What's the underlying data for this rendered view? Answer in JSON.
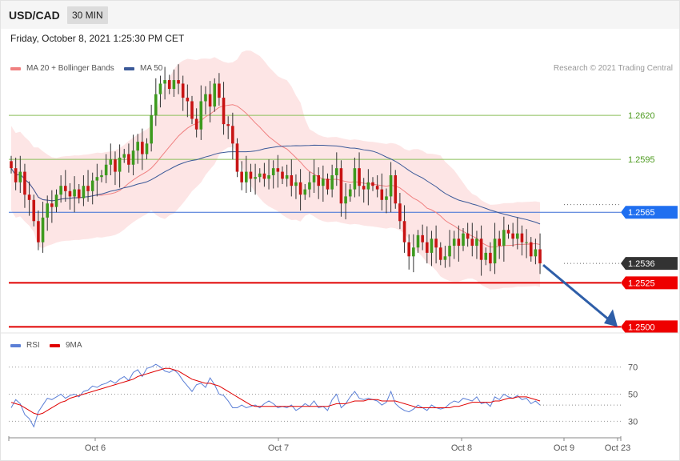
{
  "header": {
    "symbol": "USD/CAD",
    "timeframe": "30 MIN",
    "datetime": "Friday, October 8, 2021 1:25:30 PM CET"
  },
  "legend": {
    "main": [
      {
        "label": "MA 20 + Bollinger Bands",
        "color": "#f08080"
      },
      {
        "label": "MA 50",
        "color": "#3b5998"
      }
    ],
    "rsi": [
      {
        "label": "RSI",
        "color": "#5b7fd6"
      },
      {
        "label": "9MA",
        "color": "#e00000"
      }
    ],
    "credit": "Research © 2021 Trading Central"
  },
  "chart_data": [
    {
      "type": "candlestick",
      "ylim": [
        1.2497,
        1.2665
      ],
      "x_labels": [
        "Oct 6",
        "Oct 7",
        "Oct 8",
        "Oct 9",
        "Oct 23"
      ],
      "levels": [
        {
          "value": 1.262,
          "label": "1.2620",
          "kind": "resistance"
        },
        {
          "value": 1.2595,
          "label": "1.2595",
          "kind": "resistance"
        },
        {
          "value": 1.2565,
          "label": "1.2565",
          "kind": "pivot"
        },
        {
          "value": 1.2536,
          "label": "1.2536",
          "kind": "last"
        },
        {
          "value": 1.2525,
          "label": "1.2525",
          "kind": "support"
        },
        {
          "value": 1.25,
          "label": "1.2500",
          "kind": "support"
        }
      ],
      "closes": [
        1.259,
        1.2582,
        1.2588,
        1.2575,
        1.2572,
        1.256,
        1.2548,
        1.2562,
        1.257,
        1.2568,
        1.2575,
        1.258,
        1.2577,
        1.2574,
        1.2578,
        1.2573,
        1.258,
        1.2577,
        1.2583,
        1.2585,
        1.2586,
        1.2592,
        1.2595,
        1.2588,
        1.2596,
        1.2598,
        1.2592,
        1.26,
        1.2605,
        1.2598,
        1.2604,
        1.262,
        1.2632,
        1.2638,
        1.264,
        1.2635,
        1.264,
        1.2638,
        1.263,
        1.2628,
        1.2618,
        1.2612,
        1.2628,
        1.2632,
        1.2625,
        1.2638,
        1.263,
        1.2615,
        1.2614,
        1.2604,
        1.2588,
        1.2582,
        1.2588,
        1.2584,
        1.2585,
        1.2587,
        1.2584,
        1.2586,
        1.259,
        1.2588,
        1.2584,
        1.2586,
        1.258,
        1.2582,
        1.2575,
        1.2578,
        1.2582,
        1.2586,
        1.258,
        1.2584,
        1.2578,
        1.2586,
        1.259,
        1.257,
        1.2574,
        1.2578,
        1.259,
        1.258,
        1.2578,
        1.2582,
        1.258,
        1.2578,
        1.2572,
        1.2574,
        1.2586,
        1.257,
        1.256,
        1.2548,
        1.254,
        1.2545,
        1.2552,
        1.2548,
        1.2542,
        1.255,
        1.2545,
        1.2538,
        1.254,
        1.2546,
        1.255,
        1.2546,
        1.2553,
        1.255,
        1.2546,
        1.255,
        1.2538,
        1.2542,
        1.2536,
        1.255,
        1.2546,
        1.2555,
        1.2553,
        1.255,
        1.2553,
        1.2548,
        1.2548,
        1.254,
        1.2544,
        1.2536
      ],
      "series": [
        {
          "name": "MA 20 + Bollinger Bands"
        },
        {
          "name": "MA 50"
        }
      ]
    },
    {
      "type": "line",
      "ylim": [
        22,
        78
      ],
      "y_ticks": [
        30,
        50,
        70
      ],
      "y_tick_labels": [
        "30",
        "50",
        "70"
      ],
      "series": [
        {
          "name": "RSI",
          "values": [
            40,
            46,
            43,
            35,
            32,
            26,
            37,
            42,
            47,
            46,
            48,
            50,
            47,
            49,
            50,
            48,
            52,
            53,
            56,
            55,
            57,
            58,
            60,
            58,
            61,
            63,
            60,
            66,
            68,
            63,
            69,
            70,
            72,
            70,
            67,
            66,
            68,
            65,
            60,
            56,
            52,
            57,
            58,
            55,
            62,
            57,
            50,
            49,
            45,
            40,
            40,
            42,
            40,
            41,
            42,
            40,
            43,
            45,
            43,
            40,
            41,
            40,
            42,
            38,
            40,
            43,
            41,
            45,
            40,
            41,
            38,
            46,
            50,
            40,
            43,
            48,
            52,
            47,
            46,
            47,
            46,
            45,
            42,
            44,
            52,
            43,
            40,
            38,
            37,
            39,
            42,
            40,
            38,
            42,
            40,
            39,
            40,
            43,
            45,
            44,
            47,
            46,
            45,
            48,
            43,
            44,
            41,
            48,
            46,
            50,
            48,
            47,
            49,
            46,
            47,
            43,
            45,
            42
          ]
        },
        {
          "name": "9MA",
          "values": [
            44,
            43,
            42,
            40,
            38,
            36,
            35,
            36,
            38,
            40,
            42,
            44,
            45,
            47,
            48,
            49,
            50,
            51,
            52,
            53,
            54,
            55,
            56,
            57,
            58,
            59,
            60,
            61,
            63,
            64,
            65,
            66,
            67,
            68,
            69,
            69,
            68,
            67,
            65,
            63,
            61,
            60,
            59,
            58,
            58,
            57,
            56,
            54,
            52,
            50,
            48,
            46,
            44,
            42,
            41,
            41,
            41,
            41,
            41,
            41,
            41,
            41,
            41,
            41,
            41,
            41,
            41,
            41,
            41,
            41,
            41,
            42,
            43,
            43,
            43,
            44,
            45,
            45,
            45,
            46,
            46,
            46,
            45,
            45,
            45,
            45,
            44,
            43,
            42,
            41,
            40,
            40,
            40,
            40,
            40,
            40,
            40,
            40,
            41,
            41,
            42,
            43,
            44,
            44,
            44,
            44,
            44,
            45,
            45,
            46,
            47,
            47,
            48,
            48,
            48,
            47,
            46,
            45
          ]
        }
      ]
    }
  ]
}
